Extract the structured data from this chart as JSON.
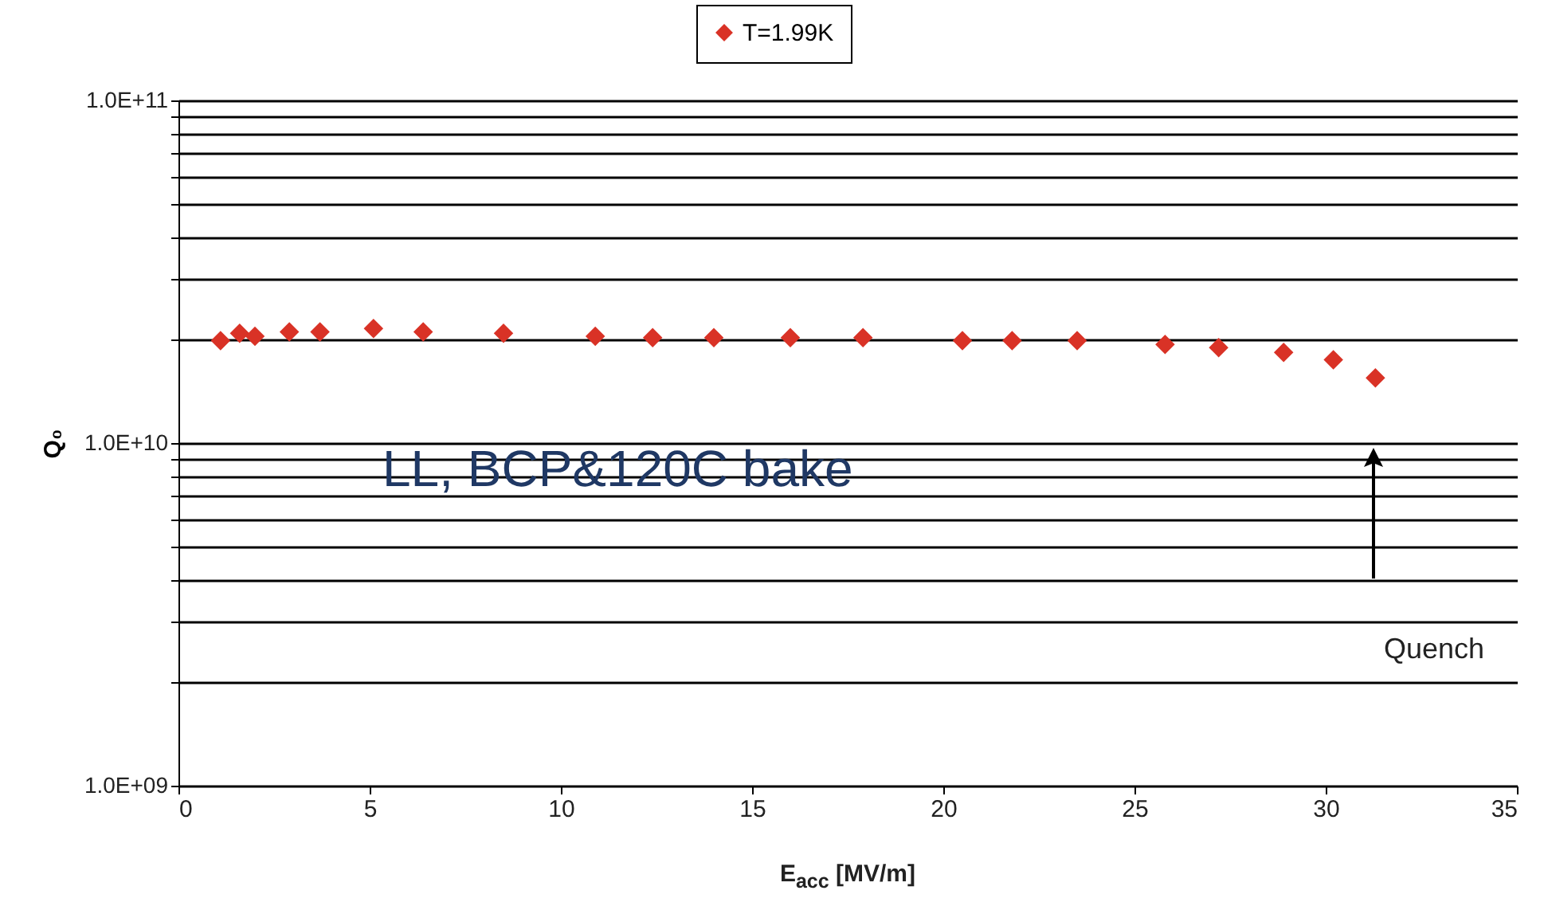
{
  "chart_data": {
    "type": "scatter",
    "xlabel": "E$_{acc}$ [MV/m]",
    "ylabel": "Q₀",
    "log": "y",
    "x": [
      1.1,
      1.6,
      2.0,
      2.9,
      3.7,
      5.1,
      6.4,
      8.5,
      10.9,
      12.4,
      14.0,
      16.0,
      17.9,
      20.5,
      21.8,
      23.5,
      25.8,
      27.2,
      28.9,
      30.2,
      31.3
    ],
    "series": [
      {
        "name": "T=1.99K",
        "color": "#d93226",
        "values": [
          19900000000.0,
          20900000000.0,
          20500000000.0,
          21100000000.0,
          21100000000.0,
          21600000000.0,
          21100000000.0,
          20900000000.0,
          20500000000.0,
          20300000000.0,
          20300000000.0,
          20300000000.0,
          20300000000.0,
          19900000000.0,
          19900000000.0,
          19900000000.0,
          19400000000.0,
          19000000000.0,
          18400000000.0,
          17500000000.0,
          15500000000.0
        ]
      }
    ],
    "xlim": [
      0,
      35
    ],
    "xticks": [
      0,
      5,
      10,
      15,
      20,
      25,
      30,
      35
    ],
    "ylim": [
      1000000000.0,
      100000000000.0
    ],
    "yticks": [
      {
        "value": 1000000000.0,
        "label": "1.0E+09"
      },
      {
        "value": 2000000000.0,
        "label": null
      },
      {
        "value": 3000000000.0,
        "label": null
      },
      {
        "value": 4000000000.0,
        "label": null
      },
      {
        "value": 5000000000.0,
        "label": null
      },
      {
        "value": 6000000000.0,
        "label": null
      },
      {
        "value": 7000000000.0,
        "label": null
      },
      {
        "value": 8000000000.0,
        "label": null
      },
      {
        "value": 9000000000.0,
        "label": null
      },
      {
        "value": 10000000000.0,
        "label": "1.0E+10"
      },
      {
        "value": 20000000000.0,
        "label": null
      },
      {
        "value": 30000000000.0,
        "label": null
      },
      {
        "value": 40000000000.0,
        "label": null
      },
      {
        "value": 50000000000.0,
        "label": null
      },
      {
        "value": 60000000000.0,
        "label": null
      },
      {
        "value": 70000000000.0,
        "label": null
      },
      {
        "value": 80000000000.0,
        "label": null
      },
      {
        "value": 90000000000.0,
        "label": null
      },
      {
        "value": 100000000000.0,
        "label": "1.0E+11"
      }
    ],
    "grid": "y",
    "legend": "top",
    "marker": "diamond",
    "annotations": [
      "LL, BCP&120C bake",
      "Quench"
    ]
  }
}
